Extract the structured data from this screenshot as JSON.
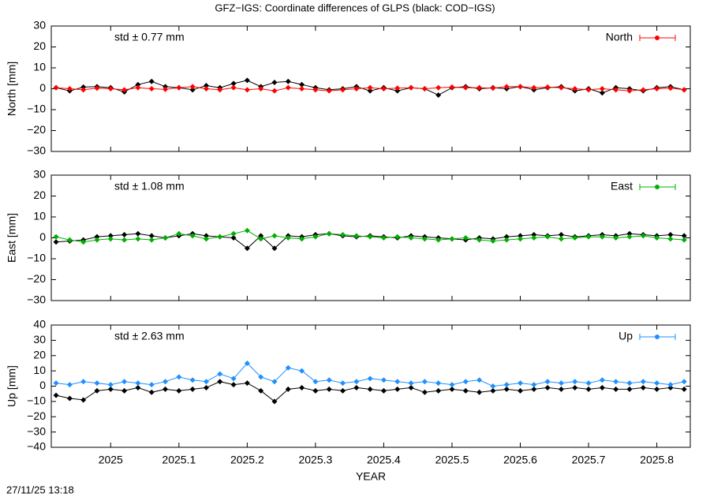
{
  "timestamp": "27/11/25 13:18",
  "chart_data": [
    {
      "type": "line",
      "title": "GFZ−IGS: Coordinate differences of GLPS (black: COD−IGS)",
      "ylabel": "North [mm]",
      "annotation": "std ± 0.77 mm",
      "x": [
        2024.92,
        2024.94,
        2024.96,
        2024.98,
        2025.0,
        2025.02,
        2025.04,
        2025.06,
        2025.08,
        2025.1,
        2025.12,
        2025.14,
        2025.16,
        2025.18,
        2025.2,
        2025.22,
        2025.24,
        2025.26,
        2025.28,
        2025.3,
        2025.32,
        2025.34,
        2025.36,
        2025.38,
        2025.4,
        2025.42,
        2025.44,
        2025.46,
        2025.48,
        2025.5,
        2025.52,
        2025.54,
        2025.56,
        2025.58,
        2025.6,
        2025.62,
        2025.64,
        2025.66,
        2025.68,
        2025.7,
        2025.72,
        2025.74,
        2025.76,
        2025.78,
        2025.8,
        2025.82,
        2025.84
      ],
      "series": [
        {
          "color": "#000000",
          "values": [
            0.5,
            -1,
            0.8,
            1,
            0.5,
            -1.5,
            2,
            3.5,
            1,
            0.5,
            -0.5,
            1.5,
            0.5,
            2.5,
            4,
            1,
            3,
            3.5,
            2,
            0.5,
            -0.5,
            0,
            1,
            -1,
            0.5,
            -1,
            0.5,
            0,
            -3,
            0.5,
            1,
            0,
            0.5,
            0,
            1,
            -0.5,
            0.5,
            1,
            -1,
            0,
            -2,
            0.5,
            0,
            -1,
            0.5,
            1,
            -0.5
          ]
        },
        {
          "name": "North",
          "color": "#ff0000",
          "values": [
            0.5,
            0,
            -0.5,
            0.3,
            0,
            -0.5,
            0.5,
            0,
            -0.3,
            0.5,
            1,
            0,
            -0.5,
            0.5,
            -0.5,
            0,
            -1,
            0.5,
            0,
            -0.5,
            -1,
            -0.5,
            0,
            0.5,
            0,
            0.3,
            0.5,
            0,
            0.5,
            0.8,
            0.5,
            0.5,
            0.3,
            1,
            1,
            0.5,
            0.8,
            0.5,
            0,
            -0.5,
            0,
            -0.5,
            -1,
            -0.5,
            0,
            0.3,
            -0.5
          ]
        }
      ],
      "xlim": [
        2024.913,
        2025.849
      ],
      "ylim": [
        -30,
        30
      ],
      "yticks": [
        {
          "value": -30,
          "label": "−30"
        },
        {
          "value": -20,
          "label": "−20"
        },
        {
          "value": -10,
          "label": "−10"
        },
        0,
        10,
        20,
        30
      ]
    },
    {
      "type": "line",
      "ylabel": "East [mm]",
      "annotation": "std ± 1.08 mm",
      "x": [
        2024.92,
        2024.94,
        2024.96,
        2024.98,
        2025.0,
        2025.02,
        2025.04,
        2025.06,
        2025.08,
        2025.1,
        2025.12,
        2025.14,
        2025.16,
        2025.18,
        2025.2,
        2025.22,
        2025.24,
        2025.26,
        2025.28,
        2025.3,
        2025.32,
        2025.34,
        2025.36,
        2025.38,
        2025.4,
        2025.42,
        2025.44,
        2025.46,
        2025.48,
        2025.5,
        2025.52,
        2025.54,
        2025.56,
        2025.58,
        2025.6,
        2025.62,
        2025.64,
        2025.66,
        2025.68,
        2025.7,
        2025.72,
        2025.74,
        2025.76,
        2025.78,
        2025.8,
        2025.82,
        2025.84
      ],
      "series": [
        {
          "color": "#000000",
          "values": [
            -2,
            -1.5,
            -1,
            0.5,
            1,
            1.5,
            2,
            1,
            0,
            1,
            2,
            1,
            0.5,
            0,
            -5,
            1,
            -5,
            1,
            0.5,
            1.5,
            2,
            1,
            0.5,
            1,
            0.5,
            0,
            1,
            0.5,
            0,
            -0.5,
            -1,
            0,
            -0.5,
            0.5,
            1,
            1.5,
            1,
            1.5,
            0.5,
            1,
            1.5,
            1,
            2,
            1.5,
            1,
            1.5,
            1
          ]
        },
        {
          "name": "East",
          "color": "#00b000",
          "values": [
            0.5,
            -1,
            -2,
            -1,
            -0.5,
            -1,
            -0.5,
            -1,
            0,
            2,
            1,
            -0.5,
            0.5,
            2,
            3.5,
            -0.5,
            1,
            0,
            -0.5,
            0.5,
            2,
            1.5,
            1,
            0.5,
            0,
            0.5,
            0,
            -0.5,
            -1,
            -0.5,
            0,
            -1,
            -1.5,
            -1,
            -0.5,
            0,
            0.5,
            -0.5,
            0,
            0.5,
            0.5,
            0,
            0.5,
            1,
            0,
            -0.5,
            -1
          ]
        }
      ],
      "xlim": [
        2024.913,
        2025.849
      ],
      "ylim": [
        -30,
        30
      ],
      "yticks": [
        {
          "value": -30,
          "label": "−30"
        },
        {
          "value": -20,
          "label": "−20"
        },
        {
          "value": -10,
          "label": "−10"
        },
        0,
        10,
        20,
        30
      ]
    },
    {
      "type": "line",
      "ylabel": "Up [mm]",
      "xlabel": "YEAR",
      "annotation": "std ± 2.63 mm",
      "x": [
        2024.92,
        2024.94,
        2024.96,
        2024.98,
        2025.0,
        2025.02,
        2025.04,
        2025.06,
        2025.08,
        2025.1,
        2025.12,
        2025.14,
        2025.16,
        2025.18,
        2025.2,
        2025.22,
        2025.24,
        2025.26,
        2025.28,
        2025.3,
        2025.32,
        2025.34,
        2025.36,
        2025.38,
        2025.4,
        2025.42,
        2025.44,
        2025.46,
        2025.48,
        2025.5,
        2025.52,
        2025.54,
        2025.56,
        2025.58,
        2025.6,
        2025.62,
        2025.64,
        2025.66,
        2025.68,
        2025.7,
        2025.72,
        2025.74,
        2025.76,
        2025.78,
        2025.8,
        2025.82,
        2025.84
      ],
      "series": [
        {
          "color": "#000000",
          "values": [
            -6,
            -8,
            -9,
            -3,
            -2,
            -3,
            -1,
            -4,
            -2,
            -3,
            -2,
            -1,
            3,
            1,
            2,
            -3,
            -10,
            -2,
            -1,
            -3,
            -2,
            -3,
            -1,
            -2,
            -3,
            -2,
            -1,
            -4,
            -3,
            -2,
            -3,
            -4,
            -3,
            -2,
            -3,
            -2,
            -1,
            -2,
            -1,
            -2,
            -1,
            -2,
            -2,
            -1,
            -2,
            -1,
            -2
          ]
        },
        {
          "name": "Up",
          "color": "#1e90ff",
          "values": [
            2,
            1,
            3,
            2,
            1,
            3,
            2,
            1,
            3,
            6,
            4,
            3,
            8,
            5,
            15,
            6,
            3,
            12,
            10,
            3,
            4,
            2,
            3,
            5,
            4,
            3,
            2,
            3,
            2,
            1,
            3,
            4,
            0,
            1,
            2,
            1,
            3,
            2,
            3,
            2,
            4,
            3,
            2,
            3,
            2,
            1,
            3
          ]
        }
      ],
      "xlim": [
        2024.913,
        2025.849
      ],
      "ylim": [
        -40,
        40
      ],
      "xticks": [
        2025,
        2025.1,
        2025.2,
        2025.3,
        2025.4,
        2025.5,
        2025.6,
        2025.7,
        2025.8
      ],
      "yticks": [
        {
          "value": -40,
          "label": "−40"
        },
        {
          "value": -30,
          "label": "−30"
        },
        {
          "value": -20,
          "label": "−20"
        },
        {
          "value": -10,
          "label": "−10"
        },
        0,
        10,
        20,
        30,
        40
      ]
    }
  ]
}
